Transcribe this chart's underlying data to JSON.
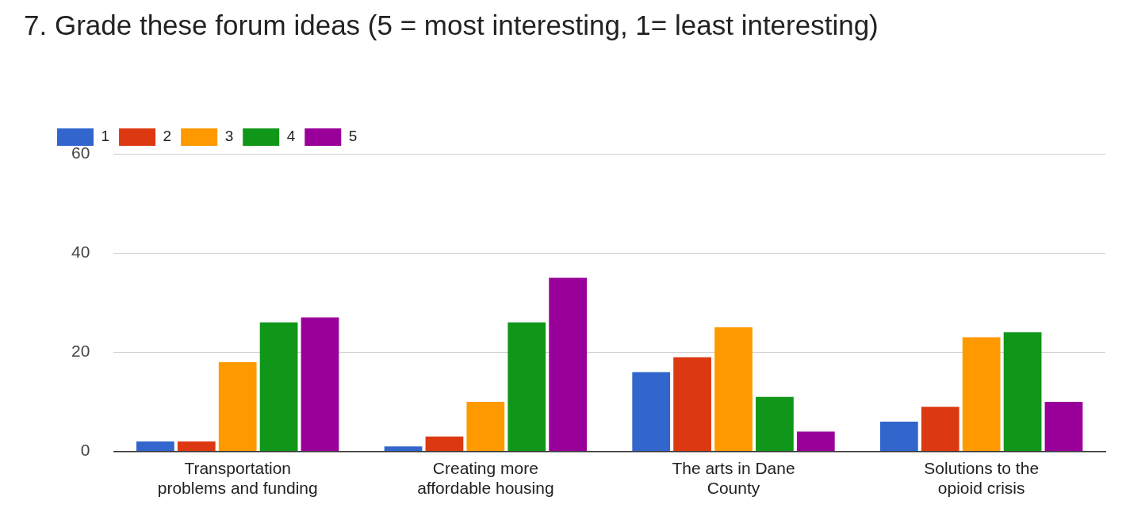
{
  "chart_data": {
    "type": "bar",
    "title": "7. Grade these forum ideas (5 = most interesting, 1= least interesting)",
    "categories": [
      "Transportation problems and funding",
      "Creating more affordable housing",
      "The arts in Dane County",
      "Solutions to the opioid crisis"
    ],
    "series": [
      {
        "name": "1",
        "color": "#3366cc",
        "values": [
          2,
          1,
          16,
          6
        ]
      },
      {
        "name": "2",
        "color": "#dc3912",
        "values": [
          2,
          3,
          19,
          9
        ]
      },
      {
        "name": "3",
        "color": "#ff9900",
        "values": [
          18,
          10,
          25,
          23
        ]
      },
      {
        "name": "4",
        "color": "#109618",
        "values": [
          26,
          26,
          11,
          24
        ]
      },
      {
        "name": "5",
        "color": "#990099",
        "values": [
          27,
          35,
          4,
          10
        ]
      }
    ],
    "ylim": [
      0,
      60
    ],
    "yticks": [
      0,
      20,
      40,
      60
    ],
    "grid": "y",
    "legend": "top left"
  }
}
